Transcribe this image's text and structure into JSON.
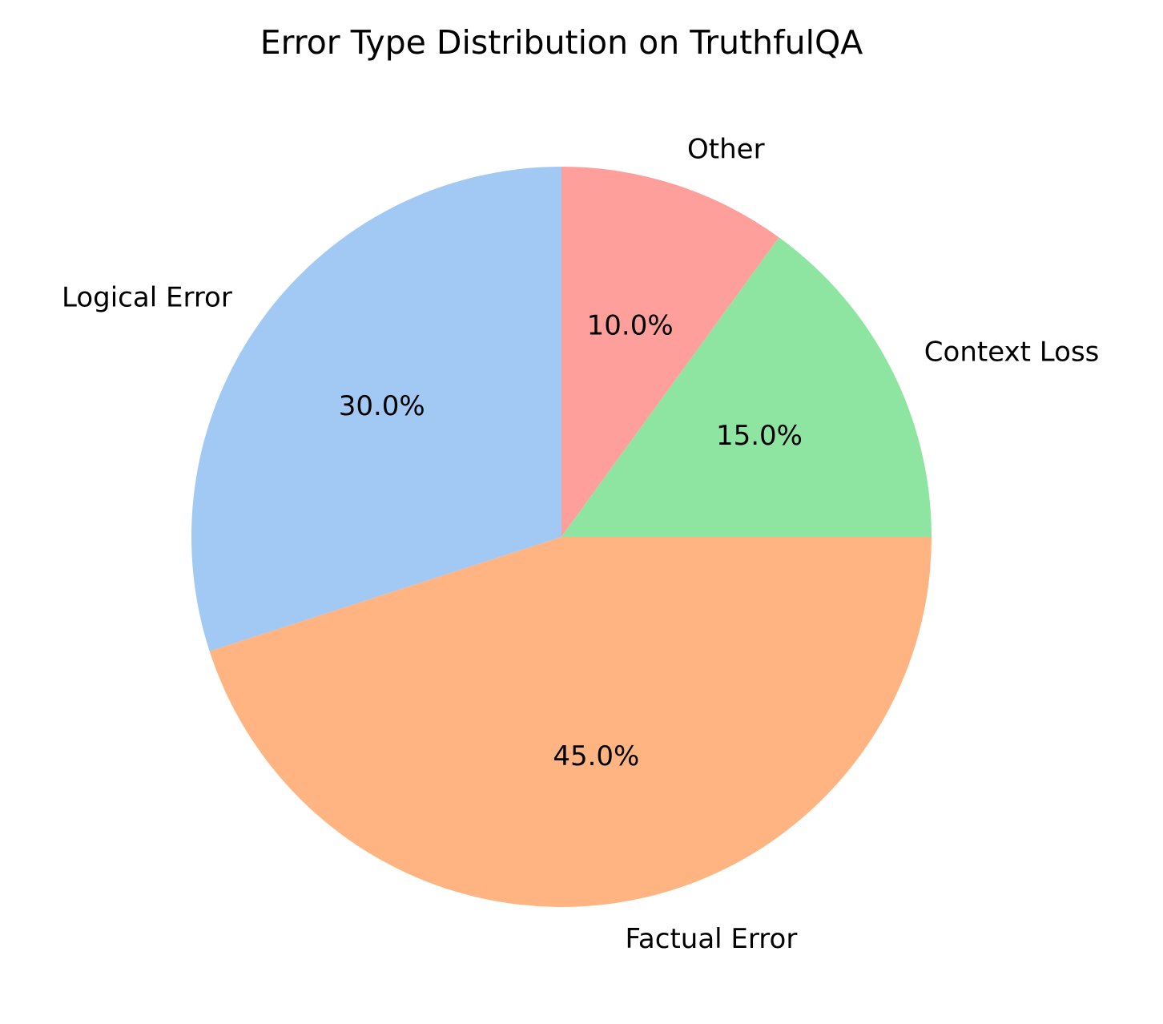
{
  "chart_data": {
    "type": "pie",
    "title": "Error Type Distribution on TruthfulQA",
    "slices": [
      {
        "label": "Other",
        "value": 10.0,
        "pct_label": "10.0%",
        "color": "#ff9f9b"
      },
      {
        "label": "Context Loss",
        "value": 15.0,
        "pct_label": "15.0%",
        "color": "#8de5a1"
      },
      {
        "label": "Factual Error",
        "value": 45.0,
        "pct_label": "45.0%",
        "color": "#ffb482"
      },
      {
        "label": "Logical Error",
        "value": 30.0,
        "pct_label": "30.0%",
        "color": "#a1c9f4"
      }
    ],
    "start_angle_deg": 90,
    "direction": "clockwise",
    "legend": "none"
  }
}
